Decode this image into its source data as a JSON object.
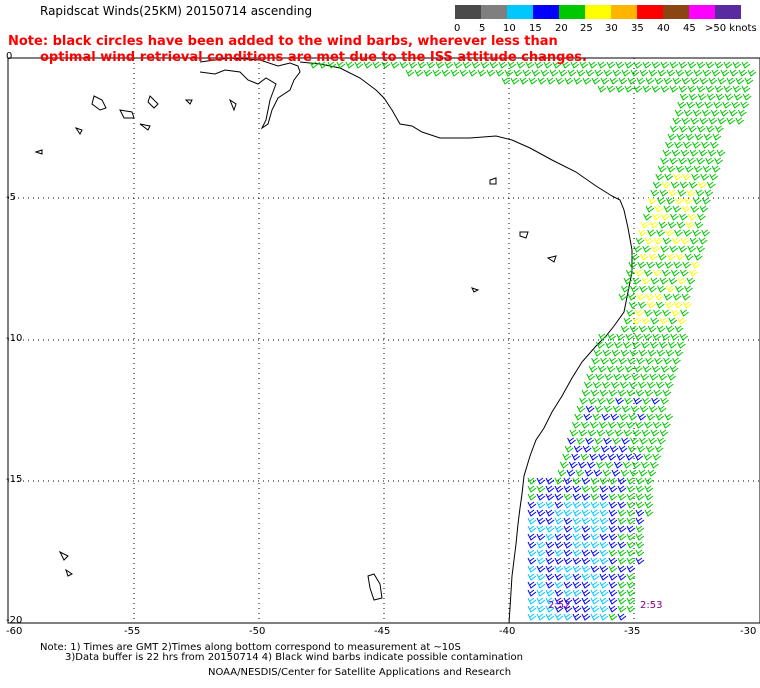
{
  "title": "Rapidscat Winds(25KM) 20150714 ascending",
  "note": {
    "line1": "Note: black circles have been added to the wind barbs, wherever less than",
    "line2": "optimal wind retrieval conditions are met due to the ISS attitude changes."
  },
  "legend": {
    "labels": [
      "0",
      "5",
      "10",
      "15",
      "20",
      "25",
      "30",
      "35",
      "40",
      "45",
      ">50 knots"
    ],
    "colors": [
      "#4a4a4a",
      "#7f7f7f",
      "#00c8ff",
      "#0000ff",
      "#00c800",
      "#ffff00",
      "#ffb400",
      "#ff0000",
      "#8b4513",
      "#ff00ff",
      "#5a2aa0"
    ]
  },
  "axes": {
    "lat_labels": [
      "0",
      "-5",
      "-10",
      "-15",
      "-20"
    ],
    "lon_labels": [
      "-60",
      "-55",
      "-50",
      "-45",
      "-40",
      "-35",
      "-30"
    ]
  },
  "time_labels": [
    "2:52",
    "2:53"
  ],
  "footer": {
    "line1": "Note: 1) Times are GMT 2)Times along bottom correspond to measurement at ~10S",
    "line2": "3)Data buffer is 22 hrs from 20150714 4) Black wind barbs indicate possible contamination",
    "line3": "NOAA/NESDIS/Center for Satellite Applications and Research"
  }
}
